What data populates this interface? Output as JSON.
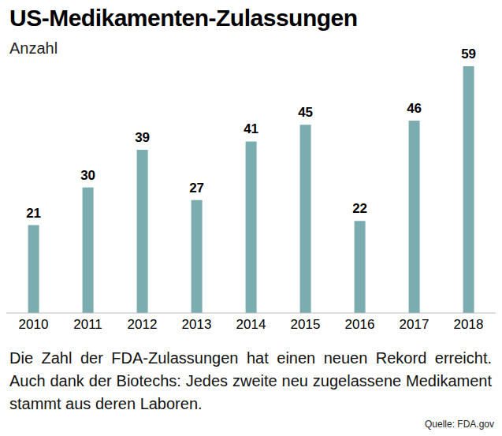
{
  "chart_data": {
    "type": "bar",
    "title": "US-Medikamenten-Zulassungen",
    "subtitle": "Anzahl",
    "categories": [
      "2010",
      "2011",
      "2012",
      "2013",
      "2014",
      "2015",
      "2016",
      "2017",
      "2018"
    ],
    "values": [
      21,
      30,
      39,
      27,
      41,
      45,
      22,
      46,
      59
    ],
    "color": "#7aacb0",
    "ylim": [
      0,
      59
    ],
    "data_labels": true,
    "tick_labels": "x",
    "grid": false,
    "caption": "Die Zahl der FDA-Zulassungen hat einen neuen Rekord erreicht. Auch dank der Biotechs: Jedes zweite neu zugelassene Medikament stammt aus deren Laboren.",
    "source": "Quelle: FDA.gov"
  }
}
